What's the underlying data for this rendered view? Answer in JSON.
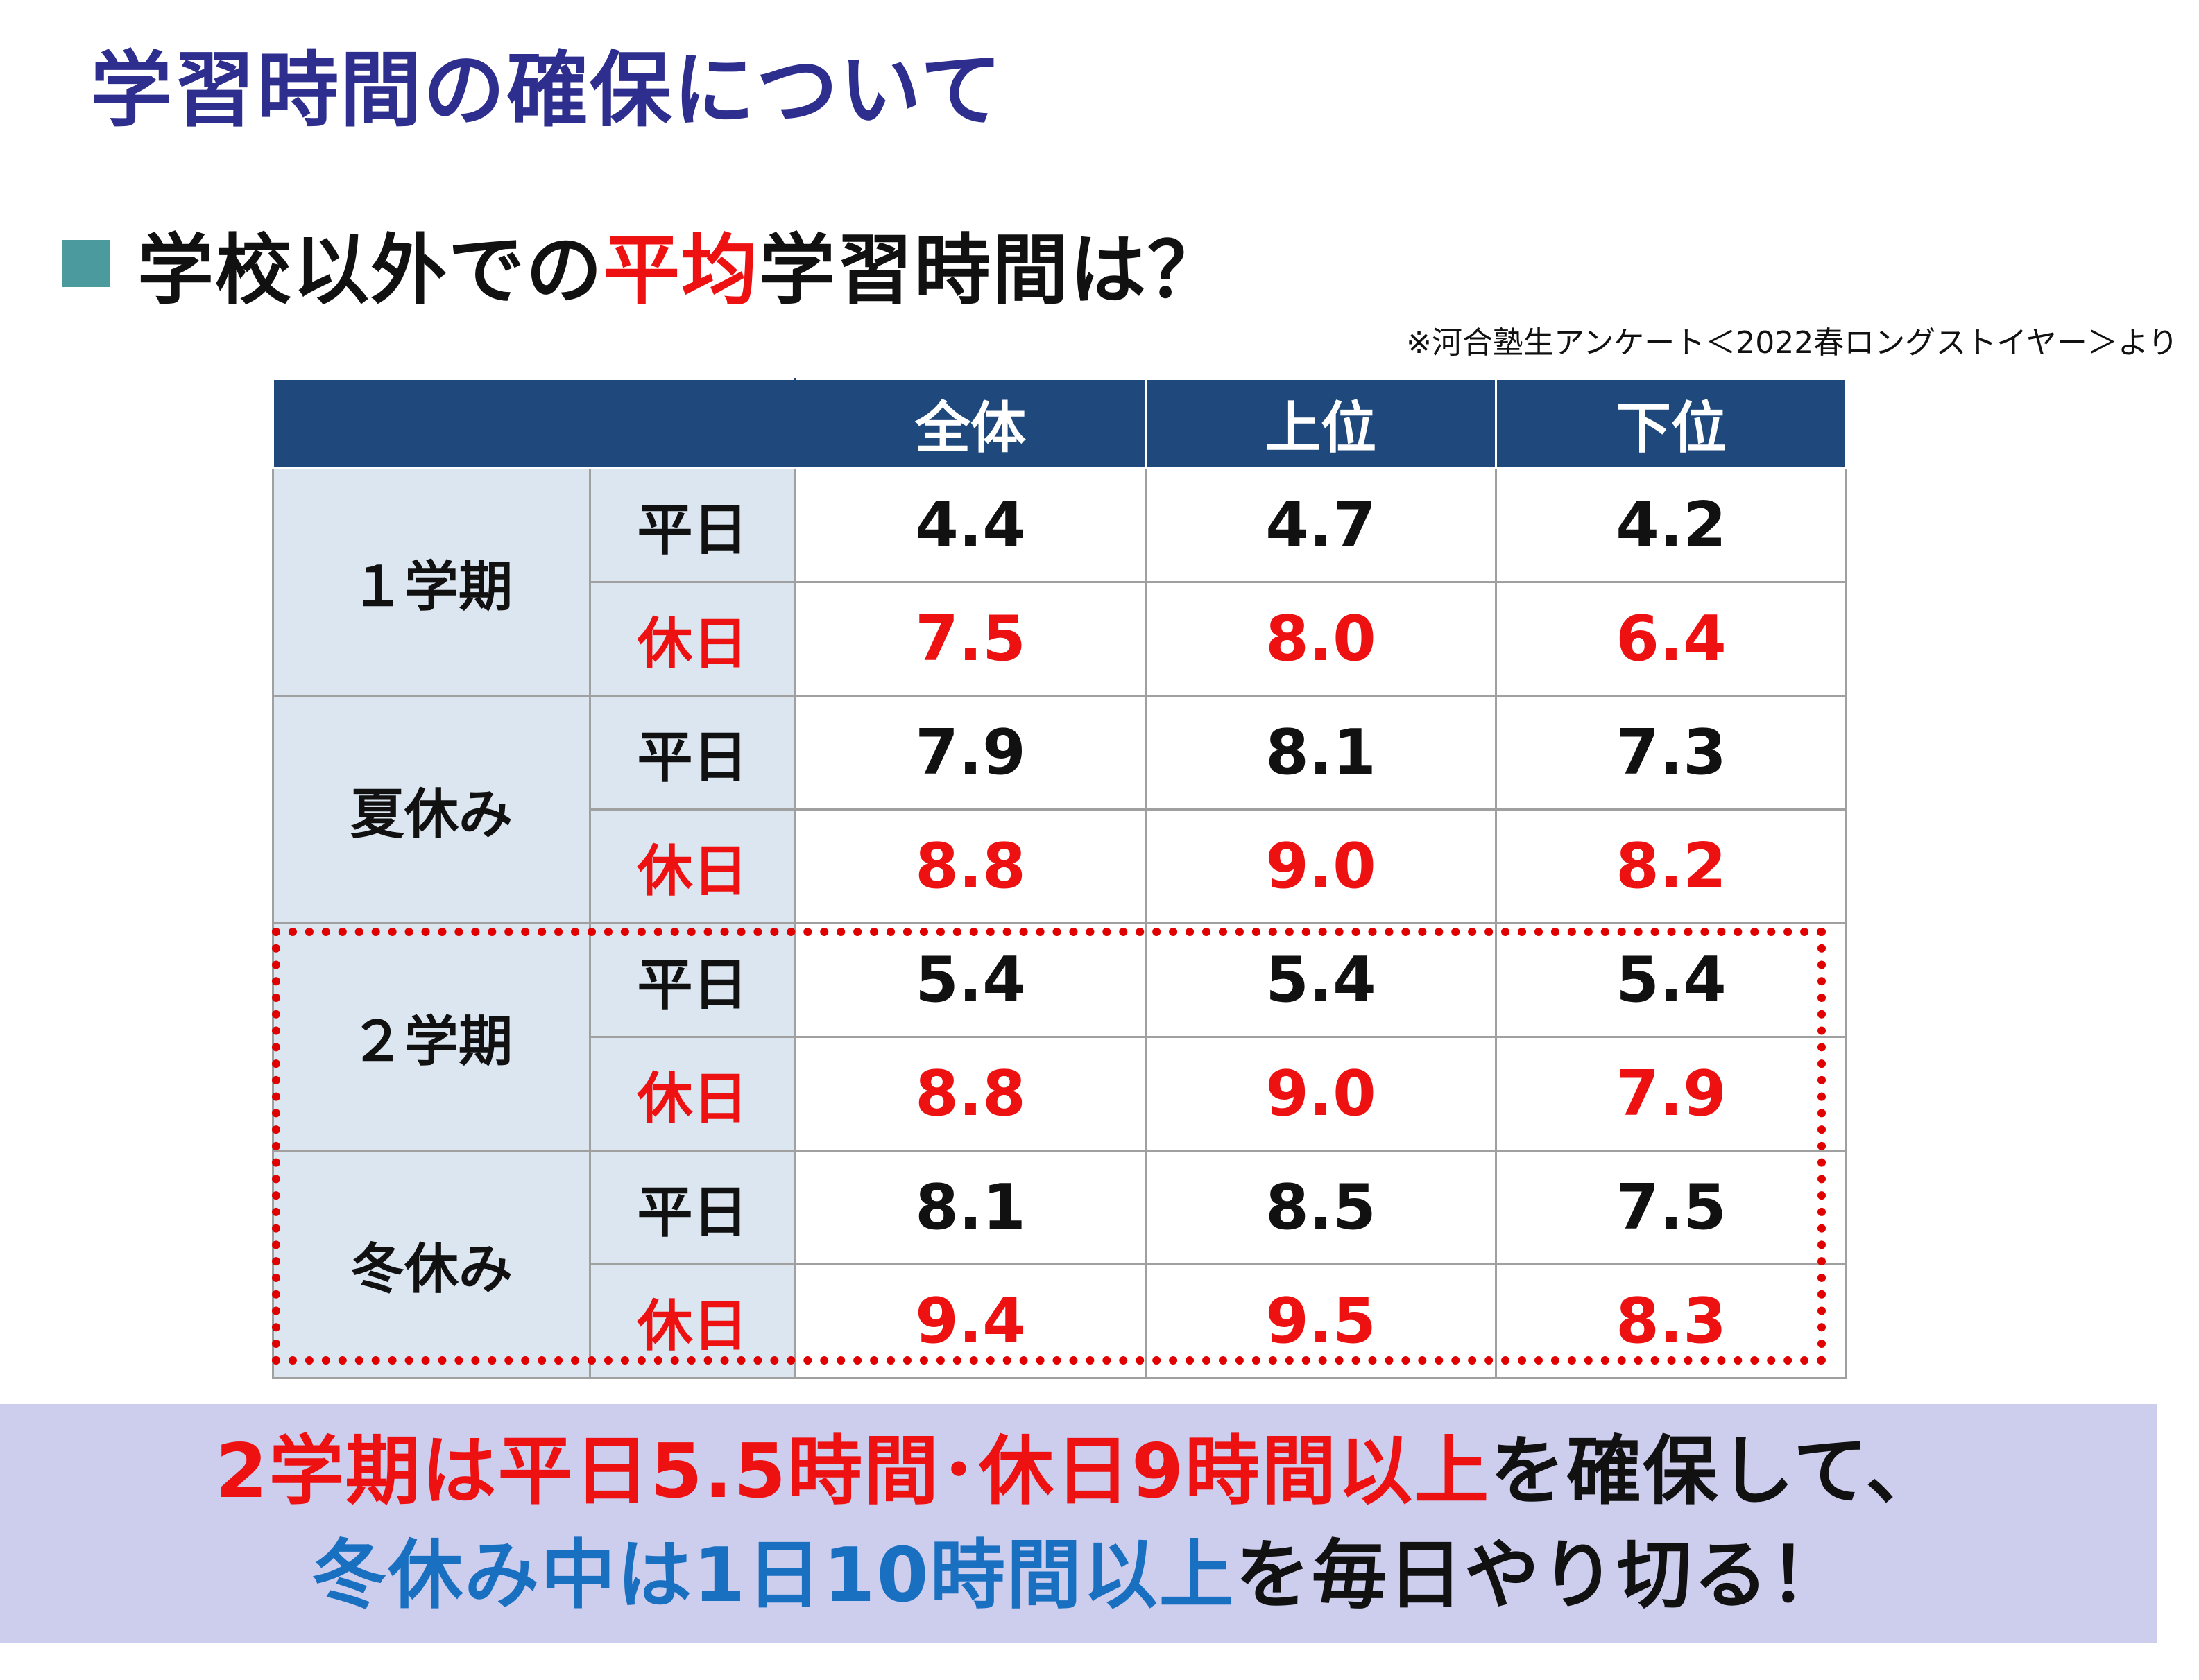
{
  "title": "学習時間の確保について",
  "subtitle": {
    "part1": "学校以外での",
    "highlight": "平均",
    "part2": "学習時間は？"
  },
  "note": "※河合塾生アンケート＜2022春ロングストイヤー＞より",
  "table": {
    "headers": [
      "全体",
      "上位",
      "下位"
    ],
    "periods": [
      {
        "name": "１学期",
        "rows": [
          {
            "day": "平日",
            "values": [
              "4.4",
              "4.7",
              "4.2"
            ]
          },
          {
            "day": "休日",
            "values": [
              "7.5",
              "8.0",
              "6.4"
            ]
          }
        ]
      },
      {
        "name": "夏休み",
        "rows": [
          {
            "day": "平日",
            "values": [
              "7.9",
              "8.1",
              "7.3"
            ]
          },
          {
            "day": "休日",
            "values": [
              "8.8",
              "9.0",
              "8.2"
            ]
          }
        ]
      },
      {
        "name": "２学期",
        "rows": [
          {
            "day": "平日",
            "values": [
              "5.4",
              "5.4",
              "5.4"
            ]
          },
          {
            "day": "休日",
            "values": [
              "8.8",
              "9.0",
              "7.9"
            ]
          }
        ]
      },
      {
        "name": "冬休み",
        "rows": [
          {
            "day": "平日",
            "values": [
              "8.1",
              "8.5",
              "7.5"
            ]
          },
          {
            "day": "休日",
            "values": [
              "9.4",
              "9.5",
              "8.3"
            ]
          }
        ]
      }
    ]
  },
  "banner": {
    "line1": {
      "red": "2学期は平日5.5時間･休日9時間以上",
      "black": "を確保して、"
    },
    "line2": {
      "blue": "冬休み中は1日10時間以上",
      "black": "を毎日やり切る！"
    }
  },
  "colors": {
    "title": "#2e2e8f",
    "accent_red": "#ee1111",
    "header_bg": "#1f497d",
    "label_bg": "#dce6f0",
    "banner_bg": "#cdcdee",
    "banner_blue": "#1a70c0",
    "bullet": "#4a9a9e"
  }
}
